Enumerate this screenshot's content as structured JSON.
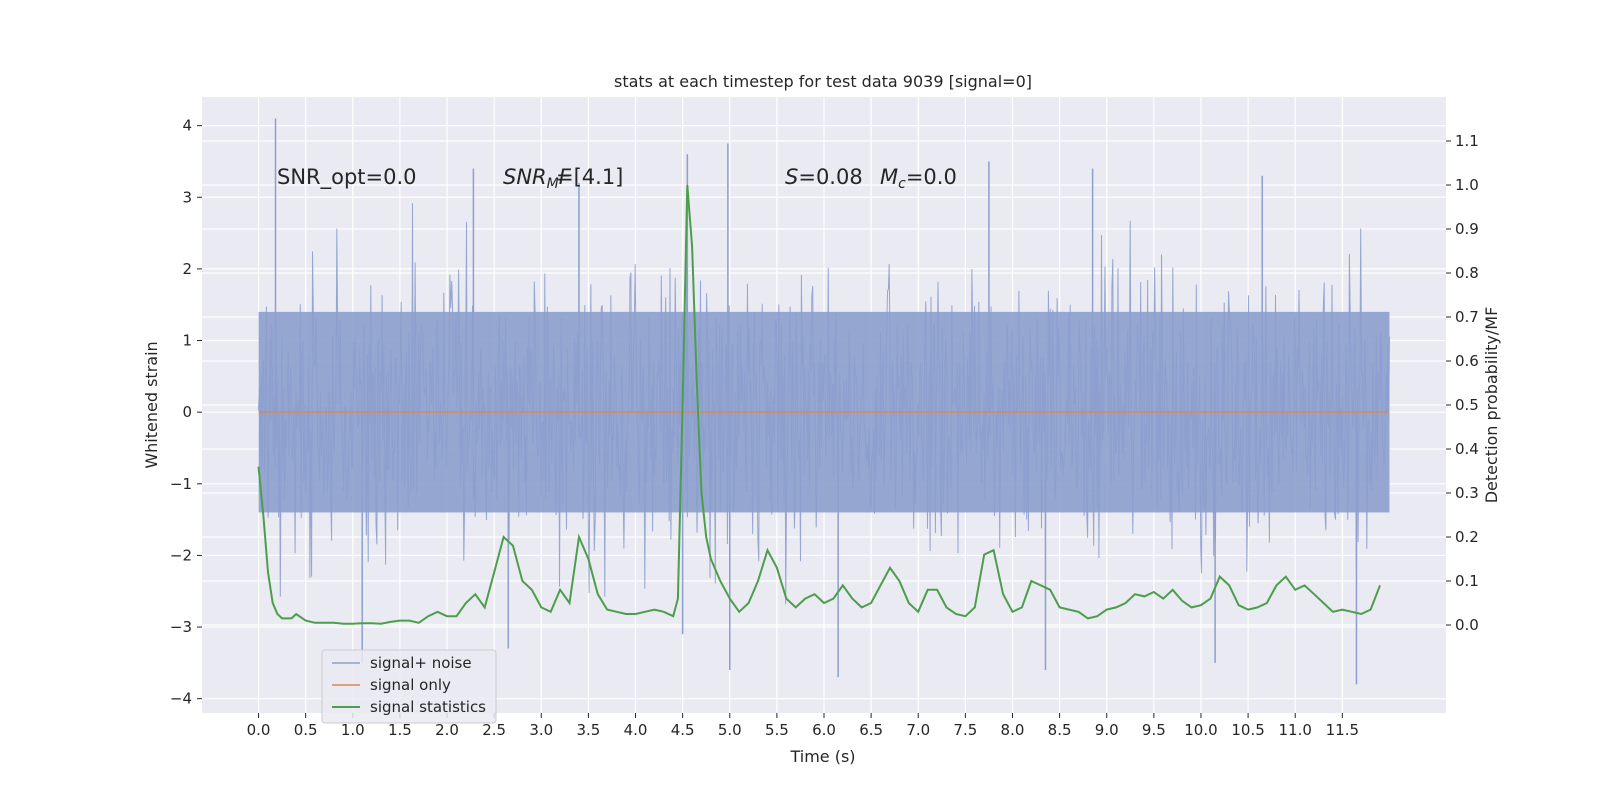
{
  "chart_data": {
    "type": "line",
    "title": "stats at each timestep for test data 9039 [signal=0]",
    "xlabel": "Time (s)",
    "ylabel": "Whitened strain",
    "y2label": "Detection probability/MF",
    "xlim": [
      -0.6,
      12.6
    ],
    "ylim": [
      -4.2,
      4.4
    ],
    "y2lim": [
      -0.2,
      1.2
    ],
    "x_ticks": [
      0.0,
      0.5,
      1.0,
      1.5,
      2.0,
      2.5,
      3.0,
      3.5,
      4.0,
      4.5,
      5.0,
      5.5,
      6.0,
      6.5,
      7.0,
      7.5,
      8.0,
      8.5,
      9.0,
      9.5,
      10.0,
      10.5,
      11.0,
      11.5
    ],
    "x_tick_labels": [
      "0.0",
      "0.5",
      "1.0",
      "1.5",
      "2.0",
      "2.5",
      "3.0",
      "3.5",
      "4.0",
      "4.5",
      "5.0",
      "5.5",
      "6.0",
      "6.5",
      "7.0",
      "7.5",
      "8.0",
      "8.5",
      "9.0",
      "9.5",
      "10.0",
      "10.5",
      "11.0",
      "11.5"
    ],
    "y_ticks": [
      -4,
      -3,
      -2,
      -1,
      0,
      1,
      2,
      3,
      4
    ],
    "y_tick_labels": [
      "−4",
      "−3",
      "−2",
      "−1",
      "0",
      "1",
      "2",
      "3",
      "4"
    ],
    "y2_ticks": [
      0.0,
      0.1,
      0.2,
      0.3,
      0.4,
      0.5,
      0.6,
      0.7,
      0.8,
      0.9,
      1.0,
      1.1
    ],
    "y2_tick_labels": [
      "0.0",
      "0.1",
      "0.2",
      "0.3",
      "0.4",
      "0.5",
      "0.6",
      "0.7",
      "0.8",
      "0.9",
      "1.0",
      "1.1"
    ],
    "grid": true,
    "legend_position": "bottom-left",
    "annotations": {
      "snr_opt": "SNR_opt=0.0",
      "snr_mf_main": "SNR",
      "snr_mf_sub": "M",
      "snr_mf_rest": "F=[4.1]",
      "s_var": "S",
      "s_val": "=0.08",
      "mc_var": "M",
      "mc_sub": "c",
      "mc_val": "=0.0"
    },
    "series": [
      {
        "name": "signal+ noise",
        "color": "#8c9fcd",
        "axis": "left",
        "kind": "noise",
        "x_range": [
          0.0,
          12.0
        ],
        "core_amplitude": 1.4,
        "peaks_high": [
          [
            0.18,
            4.1
          ],
          [
            4.55,
            3.6
          ],
          [
            4.98,
            3.75
          ],
          [
            2.28,
            3.4
          ],
          [
            7.75,
            3.5
          ],
          [
            8.85,
            3.4
          ],
          [
            10.65,
            3.3
          ],
          [
            3.4,
            3.2
          ]
        ],
        "peaks_low": [
          [
            1.1,
            -3.5
          ],
          [
            4.5,
            -3.1
          ],
          [
            5.0,
            -3.6
          ],
          [
            6.15,
            -3.7
          ],
          [
            8.35,
            -3.6
          ],
          [
            10.15,
            -3.5
          ],
          [
            11.65,
            -3.8
          ],
          [
            2.65,
            -3.3
          ]
        ]
      },
      {
        "name": "signal only",
        "color": "#dd8452",
        "axis": "left",
        "x": [
          0.0,
          12.0
        ],
        "y": [
          0.0,
          0.0
        ]
      },
      {
        "name": "signal statistics",
        "color": "#4c9e4c",
        "axis": "right",
        "x": [
          0.0,
          0.05,
          0.1,
          0.15,
          0.2,
          0.25,
          0.3,
          0.35,
          0.4,
          0.5,
          0.6,
          0.7,
          0.8,
          0.9,
          1.0,
          1.1,
          1.2,
          1.3,
          1.4,
          1.5,
          1.6,
          1.7,
          1.8,
          1.9,
          2.0,
          2.1,
          2.2,
          2.3,
          2.4,
          2.5,
          2.6,
          2.7,
          2.8,
          2.9,
          3.0,
          3.1,
          3.2,
          3.3,
          3.4,
          3.5,
          3.6,
          3.7,
          3.8,
          3.9,
          4.0,
          4.1,
          4.2,
          4.3,
          4.4,
          4.45,
          4.5,
          4.55,
          4.6,
          4.65,
          4.7,
          4.75,
          4.8,
          4.9,
          5.0,
          5.1,
          5.2,
          5.3,
          5.4,
          5.5,
          5.6,
          5.7,
          5.8,
          5.9,
          6.0,
          6.1,
          6.2,
          6.3,
          6.4,
          6.5,
          6.6,
          6.7,
          6.8,
          6.9,
          7.0,
          7.1,
          7.2,
          7.3,
          7.4,
          7.5,
          7.6,
          7.7,
          7.8,
          7.9,
          8.0,
          8.1,
          8.2,
          8.3,
          8.4,
          8.5,
          8.6,
          8.7,
          8.8,
          8.9,
          9.0,
          9.1,
          9.2,
          9.3,
          9.4,
          9.5,
          9.6,
          9.7,
          9.8,
          9.9,
          10.0,
          10.1,
          10.2,
          10.3,
          10.4,
          10.5,
          10.6,
          10.7,
          10.8,
          10.9,
          11.0,
          11.1,
          11.2,
          11.3,
          11.4,
          11.5,
          11.6,
          11.7,
          11.8,
          11.9
        ],
        "y": [
          0.36,
          0.25,
          0.12,
          0.05,
          0.025,
          0.015,
          0.015,
          0.015,
          0.025,
          0.01,
          0.005,
          0.005,
          0.005,
          0.003,
          0.003,
          0.004,
          0.004,
          0.003,
          0.007,
          0.01,
          0.01,
          0.005,
          0.02,
          0.03,
          0.02,
          0.02,
          0.05,
          0.07,
          0.04,
          0.12,
          0.2,
          0.18,
          0.1,
          0.08,
          0.04,
          0.03,
          0.08,
          0.05,
          0.2,
          0.15,
          0.07,
          0.035,
          0.03,
          0.025,
          0.025,
          0.03,
          0.035,
          0.03,
          0.02,
          0.06,
          0.5,
          1.0,
          0.86,
          0.55,
          0.3,
          0.2,
          0.15,
          0.1,
          0.06,
          0.03,
          0.05,
          0.1,
          0.17,
          0.13,
          0.06,
          0.04,
          0.06,
          0.07,
          0.05,
          0.06,
          0.09,
          0.06,
          0.04,
          0.05,
          0.09,
          0.13,
          0.1,
          0.05,
          0.03,
          0.08,
          0.08,
          0.04,
          0.025,
          0.02,
          0.04,
          0.16,
          0.17,
          0.07,
          0.03,
          0.04,
          0.1,
          0.09,
          0.08,
          0.04,
          0.035,
          0.03,
          0.015,
          0.02,
          0.035,
          0.04,
          0.05,
          0.07,
          0.065,
          0.075,
          0.06,
          0.08,
          0.055,
          0.04,
          0.045,
          0.06,
          0.11,
          0.09,
          0.045,
          0.035,
          0.04,
          0.05,
          0.09,
          0.11,
          0.08,
          0.09,
          0.07,
          0.05,
          0.03,
          0.035,
          0.03,
          0.025,
          0.035,
          0.09
        ]
      }
    ]
  }
}
